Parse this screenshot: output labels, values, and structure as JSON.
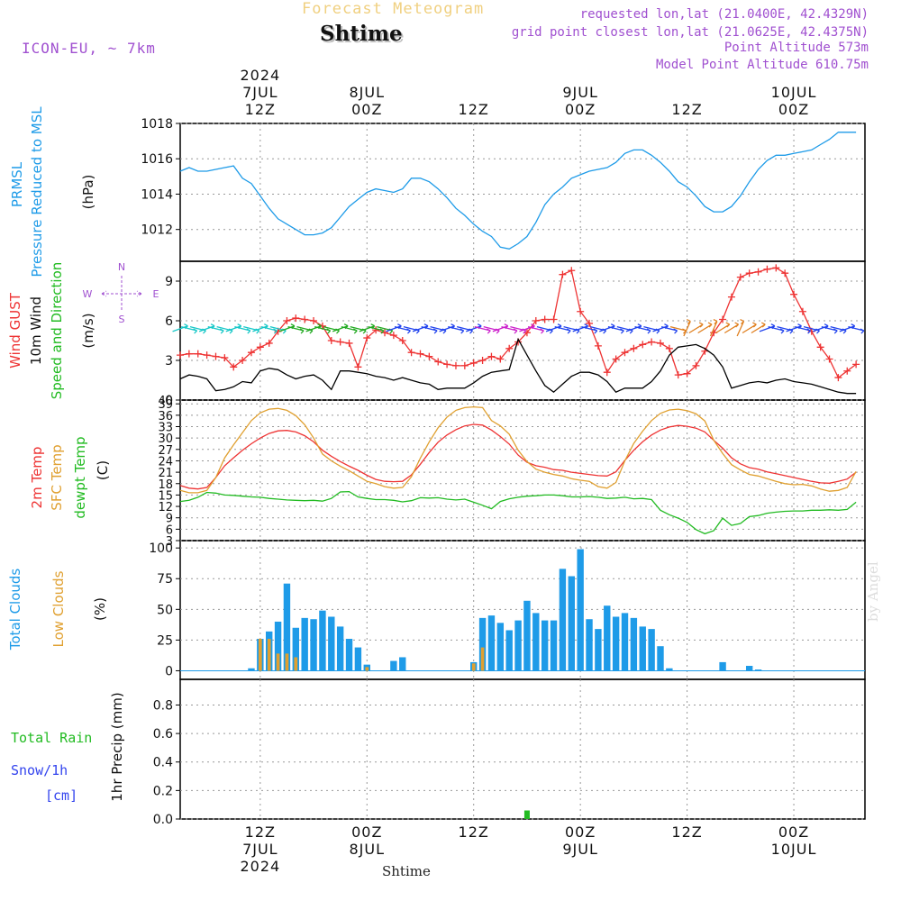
{
  "header": {
    "title": "Forecast Meteogram",
    "location": "Shtime",
    "model": "ICON-EU, ~ 7km",
    "requested": "requested lon,lat (21.0400E, 42.4329N)",
    "gridpoint": "grid point closest lon,lat (21.0625E, 42.4375N)",
    "point_alt": "Point Altitude 573m",
    "model_alt": "Model Point Altitude 610.75m",
    "footer_location": "Shtime",
    "watermark": "by Angel"
  },
  "colors": {
    "pressure": "#1e9be8",
    "gust": "#ee3333",
    "wind10": "#000000",
    "t2m": "#ee3333",
    "sfc": "#e0a030",
    "dewpt": "#22bb22",
    "total_clouds": "#1e9be8",
    "low_clouds": "#e0a030",
    "rain": "#22bb22",
    "snow": "#3344ee",
    "meta": "#a050d0",
    "title": "#f0d080"
  },
  "time_axis": {
    "hours_range": [
      0,
      77
    ],
    "ticks_top": [
      {
        "h": 9,
        "lines": [
          "2024",
          "7JUL",
          "12Z"
        ]
      },
      {
        "h": 21,
        "lines": [
          "8JUL",
          "00Z"
        ]
      },
      {
        "h": 33,
        "lines": [
          "12Z"
        ]
      },
      {
        "h": 45,
        "lines": [
          "9JUL",
          "00Z"
        ]
      },
      {
        "h": 57,
        "lines": [
          "12Z"
        ]
      },
      {
        "h": 69,
        "lines": [
          "10JUL",
          "00Z"
        ]
      }
    ],
    "ticks_bottom": [
      {
        "h": 9,
        "lines": [
          "12Z",
          "7JUL",
          "2024"
        ]
      },
      {
        "h": 21,
        "lines": [
          "00Z",
          "8JUL"
        ]
      },
      {
        "h": 33,
        "lines": [
          "12Z"
        ]
      },
      {
        "h": 45,
        "lines": [
          "00Z",
          "9JUL"
        ]
      },
      {
        "h": 57,
        "lines": [
          "12Z"
        ]
      },
      {
        "h": 69,
        "lines": [
          "00Z",
          "10JUL"
        ]
      }
    ]
  },
  "panels": {
    "pressure": {
      "label1": "PRMSL",
      "label2": "Pressure Reduced to MSL",
      "unit": "(hPa)"
    },
    "wind": {
      "label_gust": "Wind GUST",
      "label_10m": "10m Wind",
      "label_dir": "Speed and Direction",
      "unit": "(m/s)",
      "compass": {
        "n": "N",
        "s": "S",
        "w": "W",
        "e": "E"
      }
    },
    "temp": {
      "label_t2m": "2m Temp",
      "label_sfc": "SFC Temp",
      "label_dew": "dewpt Temp",
      "unit": "(C)"
    },
    "clouds": {
      "label_total": "Total Clouds",
      "label_low": "Low Clouds",
      "unit": "(%)"
    },
    "precip": {
      "label_rain": "Total  Rain",
      "label_snow": "Snow/1h",
      "label_cm": "[cm]",
      "unit": "1hr Precip (mm)"
    }
  },
  "chart_data": [
    {
      "type": "line",
      "title": "PRMSL Pressure Reduced to MSL",
      "ylabel": "hPa",
      "ylim": [
        1010.2,
        1018
      ],
      "yticks": [
        1012,
        1014,
        1016,
        1018
      ],
      "x": [
        0,
        1,
        2,
        3,
        4,
        5,
        6,
        7,
        8,
        9,
        10,
        11,
        12,
        13,
        14,
        15,
        16,
        17,
        18,
        19,
        20,
        21,
        22,
        23,
        24,
        25,
        26,
        27,
        28,
        29,
        30,
        31,
        32,
        33,
        34,
        35,
        36,
        37,
        38,
        39,
        40,
        41,
        42,
        43,
        44,
        45,
        46,
        47,
        48,
        49,
        50,
        51,
        52,
        53,
        54,
        55,
        56,
        57,
        58,
        59,
        60,
        61,
        62,
        63,
        64,
        65,
        66,
        67,
        68,
        69,
        70,
        71,
        72,
        73,
        74,
        75,
        76
      ],
      "series": [
        {
          "name": "PRMSL",
          "values": [
            1015.3,
            1015.5,
            1015.3,
            1015.3,
            1015.4,
            1015.5,
            1015.6,
            1014.9,
            1014.6,
            1013.9,
            1013.2,
            1012.6,
            1012.3,
            1012.0,
            1011.7,
            1011.7,
            1011.8,
            1012.1,
            1012.7,
            1013.3,
            1013.7,
            1014.1,
            1014.3,
            1014.2,
            1014.1,
            1014.3,
            1014.9,
            1014.9,
            1014.7,
            1014.3,
            1013.8,
            1013.2,
            1012.8,
            1012.3,
            1011.9,
            1011.6,
            1011.0,
            1010.9,
            1011.2,
            1011.6,
            1012.4,
            1013.4,
            1014.0,
            1014.4,
            1014.9,
            1015.1,
            1015.3,
            1015.4,
            1015.5,
            1015.8,
            1016.3,
            1016.5,
            1016.5,
            1016.2,
            1015.8,
            1015.3,
            1014.7,
            1014.4,
            1013.9,
            1013.3,
            1013.0,
            1013.0,
            1013.3,
            1013.9,
            1014.7,
            1015.4,
            1015.9,
            1016.2,
            1016.2,
            1016.3,
            1016.4,
            1016.5,
            1016.8,
            1017.1,
            1017.5,
            1017.5,
            1017.5
          ]
        }
      ]
    },
    {
      "type": "line",
      "title": "Wind GUST / 10m Wind Speed and Direction",
      "ylabel": "m/s",
      "ylim": [
        0,
        10.5
      ],
      "yticks": [
        0,
        3,
        6,
        9
      ],
      "x": [
        0,
        1,
        2,
        3,
        4,
        5,
        6,
        7,
        8,
        9,
        10,
        11,
        12,
        13,
        14,
        15,
        16,
        17,
        18,
        19,
        20,
        21,
        22,
        23,
        24,
        25,
        26,
        27,
        28,
        29,
        30,
        31,
        32,
        33,
        34,
        35,
        36,
        37,
        38,
        39,
        40,
        41,
        42,
        43,
        44,
        45,
        46,
        47,
        48,
        49,
        50,
        51,
        52,
        53,
        54,
        55,
        56,
        57,
        58,
        59,
        60,
        61,
        62,
        63,
        64,
        65,
        66,
        67,
        68,
        69,
        70,
        71,
        72,
        73,
        74,
        75,
        76
      ],
      "series": [
        {
          "name": "Wind GUST",
          "values": [
            3.4,
            3.5,
            3.5,
            3.4,
            3.3,
            3.2,
            2.5,
            3.0,
            3.6,
            4.0,
            4.3,
            5.2,
            6.0,
            6.2,
            6.1,
            6.0,
            5.6,
            4.5,
            4.4,
            4.3,
            2.5,
            4.7,
            5.3,
            5.1,
            4.9,
            4.5,
            3.6,
            3.5,
            3.3,
            2.9,
            2.7,
            2.6,
            2.6,
            2.8,
            3.0,
            3.3,
            3.1,
            3.9,
            4.4,
            5.1,
            6.0,
            6.1,
            6.1,
            9.5,
            9.8,
            6.7,
            5.8,
            4.1,
            2.1,
            3.1,
            3.6,
            3.9,
            4.2,
            4.4,
            4.3,
            3.9,
            1.9,
            2.0,
            2.6,
            3.7,
            5.1,
            6.1,
            7.8,
            9.3,
            9.6,
            9.7,
            9.9,
            10.0,
            9.6,
            8.0,
            6.7,
            5.2,
            4.0,
            3.1,
            1.7,
            2.2,
            2.7
          ]
        },
        {
          "name": "10m Wind",
          "values": [
            1.6,
            1.9,
            1.8,
            1.6,
            0.7,
            0.8,
            1.0,
            1.4,
            1.3,
            2.2,
            2.4,
            2.3,
            1.9,
            1.6,
            1.8,
            1.9,
            1.5,
            0.8,
            2.2,
            2.2,
            2.1,
            2.0,
            1.8,
            1.7,
            1.5,
            1.7,
            1.5,
            1.3,
            1.2,
            0.8,
            0.9,
            0.9,
            0.9,
            1.3,
            1.8,
            2.1,
            2.2,
            2.3,
            4.6,
            3.4,
            2.2,
            1.1,
            0.6,
            1.2,
            1.8,
            2.1,
            2.1,
            1.9,
            1.4,
            0.6,
            0.9,
            0.9,
            0.9,
            1.4,
            2.2,
            3.4,
            4.0,
            4.1,
            4.2,
            3.9,
            3.4,
            2.5,
            0.9,
            1.1,
            1.3,
            1.4,
            1.3,
            1.5,
            1.6,
            1.4,
            1.3,
            1.2,
            1.0,
            0.8,
            0.6,
            0.5,
            0.5
          ]
        }
      ]
    },
    {
      "type": "line",
      "title": "2m Temp / SFC Temp / dewpt Temp",
      "ylabel": "C",
      "ylim": [
        3,
        40
      ],
      "yticks": [
        3,
        6,
        9,
        12,
        15,
        18,
        21,
        24,
        27,
        30,
        33,
        36,
        39,
        40
      ],
      "x": [
        0,
        1,
        2,
        3,
        4,
        5,
        6,
        7,
        8,
        9,
        10,
        11,
        12,
        13,
        14,
        15,
        16,
        17,
        18,
        19,
        20,
        21,
        22,
        23,
        24,
        25,
        26,
        27,
        28,
        29,
        30,
        31,
        32,
        33,
        34,
        35,
        36,
        37,
        38,
        39,
        40,
        41,
        42,
        43,
        44,
        45,
        46,
        47,
        48,
        49,
        50,
        51,
        52,
        53,
        54,
        55,
        56,
        57,
        58,
        59,
        60,
        61,
        62,
        63,
        64,
        65,
        66,
        67,
        68,
        69,
        70,
        71,
        72,
        73,
        74,
        75,
        76
      ],
      "series": [
        {
          "name": "2m Temp",
          "values": [
            17.5,
            16.8,
            16.6,
            17.0,
            19.6,
            22.7,
            24.8,
            26.8,
            28.5,
            30.0,
            31.2,
            31.9,
            32.0,
            31.6,
            30.6,
            29.0,
            26.8,
            25.2,
            23.8,
            22.6,
            21.5,
            20.2,
            19.1,
            18.6,
            18.5,
            18.6,
            20.3,
            23.1,
            26.2,
            28.9,
            30.8,
            32.2,
            33.2,
            33.6,
            33.4,
            32.1,
            30.4,
            28.4,
            25.5,
            23.6,
            22.7,
            22.3,
            21.7,
            21.5,
            21.0,
            20.7,
            20.4,
            20.1,
            20.0,
            21.1,
            24.1,
            26.8,
            29.0,
            30.8,
            32.1,
            32.9,
            33.3,
            33.1,
            32.6,
            31.6,
            29.4,
            27.3,
            24.8,
            23.2,
            22.2,
            21.8,
            21.1,
            20.6,
            20.1,
            19.6,
            19.1,
            18.6,
            18.2,
            18.1,
            18.6,
            19.2,
            21.0
          ]
        },
        {
          "name": "SFC Temp",
          "values": [
            16.2,
            15.6,
            15.6,
            16.2,
            19.6,
            24.8,
            28.2,
            31.4,
            34.6,
            36.6,
            37.6,
            37.8,
            37.3,
            35.9,
            33.5,
            30.0,
            25.8,
            24.0,
            22.6,
            21.4,
            20.0,
            18.6,
            18.0,
            17.2,
            16.8,
            17.0,
            19.8,
            24.7,
            29.0,
            32.7,
            35.5,
            37.3,
            38.0,
            38.2,
            38.0,
            34.6,
            33.2,
            31.0,
            26.8,
            23.8,
            21.8,
            21.0,
            20.4,
            20.0,
            19.3,
            18.9,
            18.6,
            17.2,
            16.8,
            18.3,
            24.0,
            28.6,
            31.8,
            34.6,
            36.5,
            37.4,
            37.6,
            37.2,
            36.4,
            34.5,
            29.4,
            25.9,
            23.0,
            21.6,
            20.4,
            20.0,
            19.3,
            18.6,
            18.0,
            17.7,
            17.8,
            17.4,
            16.6,
            16.0,
            16.2,
            17.0,
            21.2
          ]
        },
        {
          "name": "dewpt Temp",
          "values": [
            13.3,
            13.6,
            14.4,
            15.7,
            15.5,
            15.0,
            14.9,
            14.7,
            14.5,
            14.4,
            14.1,
            13.9,
            13.7,
            13.6,
            13.5,
            13.6,
            13.4,
            14.1,
            15.8,
            15.9,
            14.5,
            14.1,
            13.8,
            13.8,
            13.6,
            13.2,
            13.5,
            14.3,
            14.2,
            14.3,
            13.9,
            13.7,
            13.9,
            13.1,
            12.3,
            11.4,
            13.3,
            14.0,
            14.4,
            14.7,
            14.8,
            15.0,
            15.0,
            14.8,
            14.5,
            14.5,
            14.6,
            14.4,
            14.1,
            14.2,
            14.4,
            14.0,
            14.1,
            13.8,
            11.0,
            9.8,
            8.9,
            7.8,
            5.9,
            4.8,
            5.6,
            8.9,
            7.0,
            7.5,
            9.3,
            9.6,
            10.2,
            10.5,
            10.7,
            10.8,
            10.8,
            11.0,
            11.0,
            11.1,
            11.0,
            11.2,
            13.1
          ]
        }
      ]
    },
    {
      "type": "bar",
      "title": "Total Clouds / Low Clouds",
      "ylabel": "%",
      "ylim": [
        -7,
        106
      ],
      "yticks": [
        0,
        25,
        50,
        75,
        100
      ],
      "x": [
        0,
        1,
        2,
        3,
        4,
        5,
        6,
        7,
        8,
        9,
        10,
        11,
        12,
        13,
        14,
        15,
        16,
        17,
        18,
        19,
        20,
        21,
        22,
        23,
        24,
        25,
        26,
        27,
        28,
        29,
        30,
        31,
        32,
        33,
        34,
        35,
        36,
        37,
        38,
        39,
        40,
        41,
        42,
        43,
        44,
        45,
        46,
        47,
        48,
        49,
        50,
        51,
        52,
        53,
        54,
        55,
        56,
        57,
        58,
        59,
        60,
        61,
        62,
        63,
        64,
        65,
        66,
        67,
        68,
        69,
        70,
        71,
        72,
        73,
        74,
        75,
        76
      ],
      "series": [
        {
          "name": "Total Clouds",
          "values": [
            0,
            0,
            0,
            0,
            0,
            0,
            0,
            0,
            2,
            26,
            32,
            40,
            71,
            35,
            43,
            42,
            49,
            44,
            36,
            26,
            19,
            5,
            0,
            0,
            8,
            11,
            0,
            0,
            0,
            0,
            0,
            0,
            0,
            7,
            43,
            45,
            39,
            33,
            41,
            57,
            47,
            41,
            41,
            83,
            77,
            99,
            42,
            34,
            53,
            44,
            47,
            43,
            36,
            34,
            20,
            2,
            0,
            0,
            0,
            0,
            0,
            7,
            0,
            0,
            4,
            1,
            0,
            0,
            0,
            0,
            0,
            0,
            0,
            0,
            0,
            0,
            0
          ]
        },
        {
          "name": "Low Clouds",
          "values": [
            0,
            0,
            0,
            0,
            0,
            0,
            0,
            0,
            0,
            26,
            26,
            14,
            14,
            11,
            0,
            0,
            0,
            0,
            0,
            0,
            0,
            3,
            0,
            0,
            0,
            0,
            0,
            0,
            0,
            0,
            0,
            0,
            0,
            6,
            19,
            0,
            0,
            0,
            0,
            0,
            0,
            0,
            0,
            0,
            0,
            0,
            0,
            0,
            0,
            0,
            0,
            0,
            0,
            0,
            0,
            0,
            0,
            0,
            0,
            0,
            0,
            0,
            0,
            0,
            0,
            0,
            0,
            0,
            0,
            0,
            0,
            0,
            0,
            0,
            0,
            0,
            0
          ]
        }
      ]
    },
    {
      "type": "bar",
      "title": "Total Rain / Snow (1hr Precip)",
      "ylabel": "1hr Precip (mm)",
      "ylim": [
        0,
        0.98
      ],
      "yticks": [
        0,
        0.2,
        0.4,
        0.6,
        0.8
      ],
      "bars": [
        {
          "x": 39,
          "value": 0.06,
          "series": "Total Rain"
        }
      ]
    }
  ]
}
